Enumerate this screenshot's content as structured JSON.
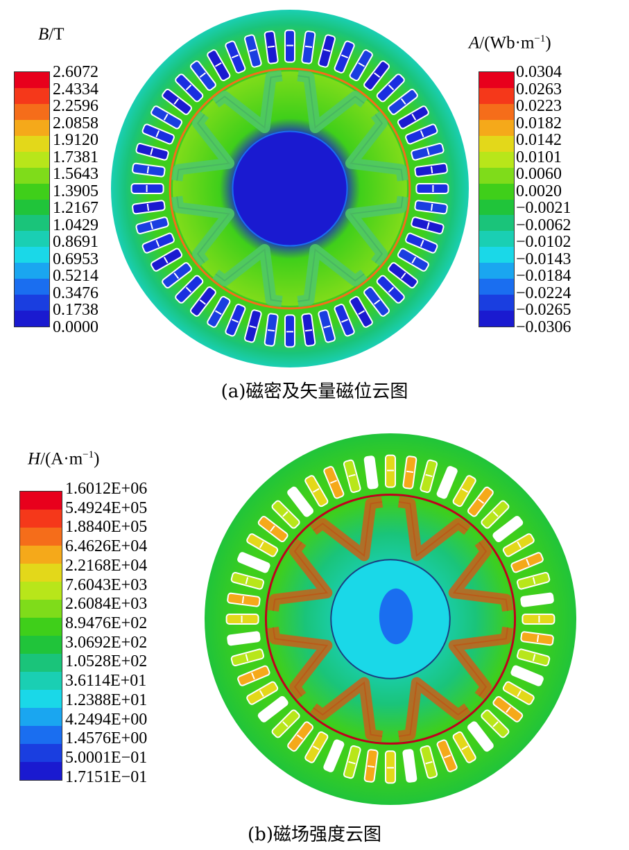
{
  "panel_a": {
    "caption": "(a)磁密及矢量磁位云图",
    "left_legend": {
      "symbol": "B",
      "unit": "/T",
      "values": [
        "2.6072",
        "2.4334",
        "2.2596",
        "2.0858",
        "1.9120",
        "1.7381",
        "1.5643",
        "1.3905",
        "1.2167",
        "1.0429",
        "0.8691",
        "0.6953",
        "0.5214",
        "0.3476",
        "0.1738",
        "0.0000"
      ],
      "colors": [
        "#e8001c",
        "#f5381a",
        "#f56d1a",
        "#f5a91a",
        "#e3d81a",
        "#b8e61a",
        "#7fdc1a",
        "#3fcf1a",
        "#20c43a",
        "#1ac47a",
        "#1acfb3",
        "#1ad8e8",
        "#1aa6f0",
        "#1a6ef0",
        "#1a3ee0",
        "#1a1ad0"
      ]
    },
    "right_legend": {
      "symbol": "A",
      "unit": "/(Wb·m",
      "exponent": "−1",
      "close": ")",
      "values": [
        "0.0304",
        "0.0263",
        "0.0223",
        "0.0182",
        "0.0142",
        "0.0101",
        "0.0060",
        "0.0020",
        "−0.0021",
        "−0.0062",
        "−0.0102",
        "−0.0143",
        "−0.0184",
        "−0.0224",
        "−0.0265",
        "−0.0306"
      ],
      "colors": [
        "#e8001c",
        "#f5381a",
        "#f56d1a",
        "#f5a91a",
        "#e3d81a",
        "#b8e61a",
        "#7fdc1a",
        "#3fcf1a",
        "#20c43a",
        "#1ac47a",
        "#1acfb3",
        "#1ad8e8",
        "#1aa6f0",
        "#1a6ef0",
        "#1a3ee0",
        "#1a1ad0"
      ]
    }
  },
  "panel_b": {
    "caption": "(b)磁场强度云图",
    "legend": {
      "symbol": "H",
      "unit": "/(A·m",
      "exponent": "−1",
      "close": ")",
      "values": [
        "1.6012E+06",
        "5.4924E+05",
        "1.8840E+05",
        "6.4626E+04",
        "2.2168E+04",
        "7.6043E+03",
        "2.6084E+03",
        "8.9476E+02",
        "3.0692E+02",
        "1.0528E+02",
        "3.6114E+01",
        "1.2388E+01",
        "4.2494E+00",
        "1.4576E+00",
        "5.0001E−01",
        "1.7151E−01"
      ],
      "colors": [
        "#e8001c",
        "#f5381a",
        "#f56d1a",
        "#f5a91a",
        "#e3d81a",
        "#b8e61a",
        "#7fdc1a",
        "#3fcf1a",
        "#20c43a",
        "#1ac47a",
        "#1acfb3",
        "#1ad8e8",
        "#1aa6f0",
        "#1a6ef0",
        "#1a3ee0",
        "#1a1ad0"
      ]
    }
  }
}
